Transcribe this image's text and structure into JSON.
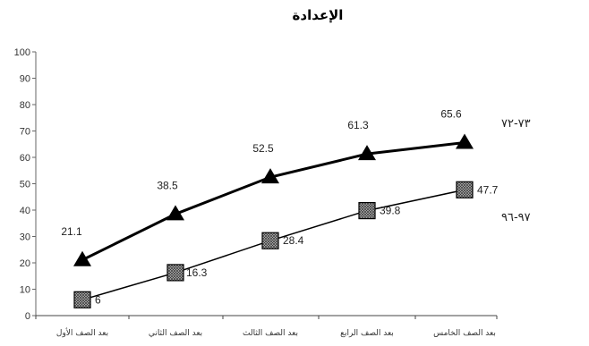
{
  "chart_data": {
    "type": "line",
    "title": "الإعدادة",
    "xlabel": "",
    "ylabel": "",
    "ylim": [
      0,
      100
    ],
    "yticks": [
      0,
      10,
      20,
      30,
      40,
      50,
      60,
      70,
      80,
      90,
      100
    ],
    "grid": false,
    "categories": [
      "بعد الصف الأول",
      "بعد الصف الثاني",
      "بعد الصف الثالث",
      "بعد الصف الرابع",
      "بعد الصف الخامس"
    ],
    "series": [
      {
        "name": "٧٣-٧٢",
        "marker": "triangle",
        "color": "#000000",
        "values": [
          21.1,
          38.5,
          52.5,
          61.3,
          65.6
        ],
        "labels": [
          "21.1",
          "38.5",
          "52.5",
          "61.3",
          "65.6"
        ]
      },
      {
        "name": "٩٧-٩٦",
        "marker": "hatched-square",
        "color": "#000000",
        "values": [
          6,
          16.3,
          28.4,
          39.8,
          47.7
        ],
        "labels": [
          "6",
          "16.3",
          "28.4",
          "39.8",
          "47.7"
        ]
      }
    ]
  }
}
